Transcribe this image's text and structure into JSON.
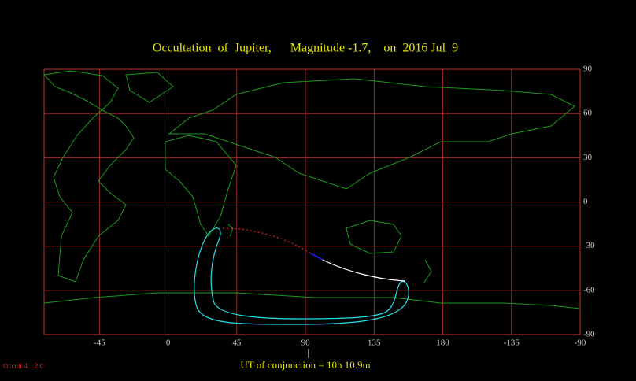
{
  "map": {
    "title": "Occultation  of  Jupiter,      Magnitude -1.7,    on  2016 Jul  9",
    "xlim": [
      -81.3,
      270
    ],
    "ylim": [
      -90,
      90
    ],
    "xticks": [
      -45,
      0,
      45,
      90,
      135,
      180,
      {
        "value": 225,
        "label": "-135"
      },
      {
        "value": 270,
        "label": "-90"
      }
    ],
    "yticks": [
      90,
      60,
      30,
      0,
      -30,
      -60,
      -90
    ],
    "conjunction_label": "UT of conjunction = 10h 10.9m",
    "version": "Occult 4.1.2.0"
  }
}
